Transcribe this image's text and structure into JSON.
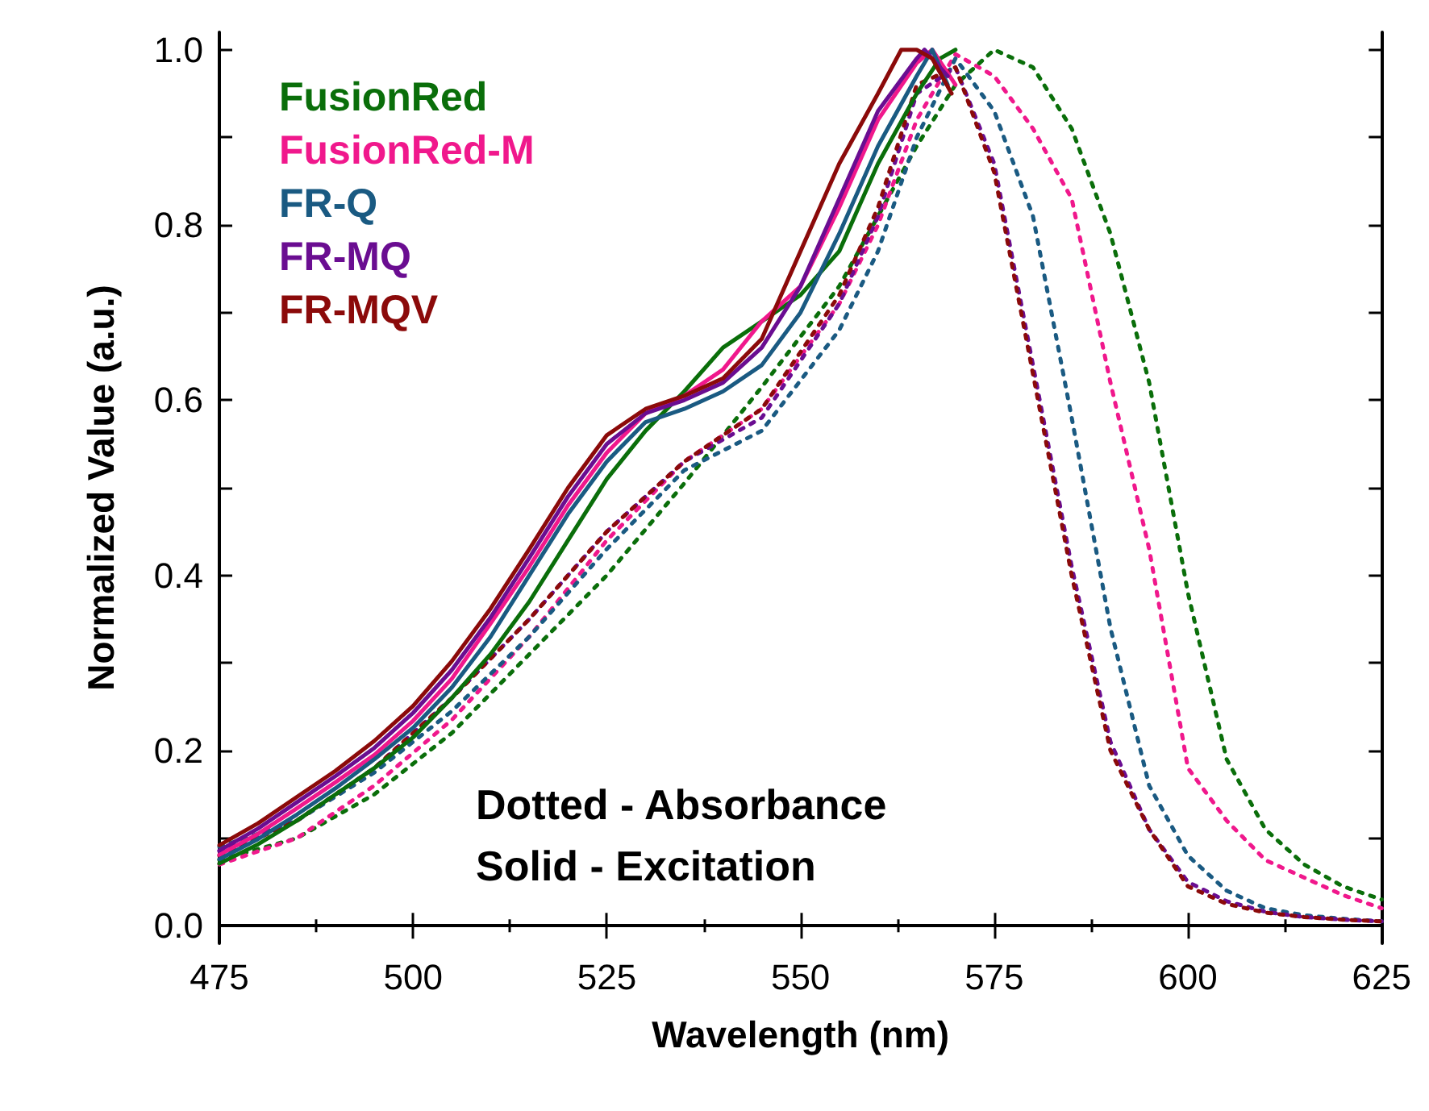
{
  "chart_data": {
    "type": "line",
    "xlabel": "Wavelength (nm)",
    "ylabel": "Normalized Value (a.u.)",
    "xlim": [
      475,
      625
    ],
    "xticks": [
      475,
      500,
      525,
      550,
      575,
      600,
      625
    ],
    "ylim": [
      -0.02,
      1.02
    ],
    "yticks": [
      {
        "value": 0,
        "label": "0.0"
      },
      {
        "value": 0.2,
        "label": "0.2"
      },
      {
        "value": 0.4,
        "label": "0.4"
      },
      {
        "value": 0.6,
        "label": "0.6"
      },
      {
        "value": 0.8,
        "label": "0.8"
      },
      {
        "value": 1,
        "label": "1.0"
      }
    ],
    "grid": false,
    "legend": "top left",
    "marker": "none",
    "annotations": [
      "Dotted - Absorbance",
      "Solid - Excitation"
    ],
    "series": [
      {
        "name": "FusionRed",
        "color": "#0a6e0a",
        "line_style": "solid",
        "x": [
          475,
          480,
          485,
          490,
          495,
          500,
          505,
          510,
          515,
          520,
          525,
          530,
          535,
          540,
          545,
          550,
          555,
          560,
          565,
          568,
          570
        ],
        "values": [
          0.071,
          0.093,
          0.12,
          0.15,
          0.18,
          0.215,
          0.26,
          0.31,
          0.37,
          0.44,
          0.51,
          0.565,
          0.61,
          0.66,
          0.69,
          0.72,
          0.77,
          0.87,
          0.95,
          0.99,
          1.0
        ]
      },
      {
        "name": "FusionRed-M",
        "color": "#f0188c",
        "line_style": "solid",
        "x": [
          475,
          480,
          485,
          490,
          495,
          500,
          505,
          510,
          515,
          520,
          525,
          530,
          535,
          540,
          545,
          550,
          555,
          560,
          565,
          567,
          570
        ],
        "values": [
          0.081,
          0.105,
          0.134,
          0.164,
          0.195,
          0.234,
          0.282,
          0.345,
          0.41,
          0.48,
          0.54,
          0.585,
          0.605,
          0.635,
          0.69,
          0.73,
          0.82,
          0.92,
          0.985,
          1.0,
          0.96
        ]
      },
      {
        "name": "FR-Q",
        "color": "#1a5a82",
        "line_style": "solid",
        "x": [
          475,
          480,
          485,
          490,
          495,
          500,
          505,
          510,
          515,
          520,
          525,
          530,
          535,
          540,
          545,
          550,
          555,
          560,
          565,
          567,
          569
        ],
        "values": [
          0.076,
          0.099,
          0.127,
          0.157,
          0.19,
          0.226,
          0.272,
          0.33,
          0.4,
          0.47,
          0.53,
          0.575,
          0.59,
          0.61,
          0.64,
          0.7,
          0.79,
          0.89,
          0.97,
          1.0,
          0.96
        ]
      },
      {
        "name": "FR-MQ",
        "color": "#6a0d91",
        "line_style": "solid",
        "x": [
          475,
          480,
          485,
          490,
          495,
          500,
          505,
          510,
          515,
          520,
          525,
          530,
          535,
          540,
          545,
          550,
          555,
          560,
          565,
          566,
          569
        ],
        "values": [
          0.086,
          0.111,
          0.141,
          0.171,
          0.203,
          0.243,
          0.292,
          0.352,
          0.42,
          0.49,
          0.55,
          0.585,
          0.6,
          0.62,
          0.66,
          0.73,
          0.83,
          0.93,
          0.99,
          1.0,
          0.97
        ]
      },
      {
        "name": "FR-MQV",
        "color": "#8b0a0a",
        "line_style": "solid",
        "x": [
          475,
          480,
          485,
          490,
          495,
          500,
          505,
          510,
          515,
          520,
          525,
          530,
          535,
          540,
          545,
          550,
          555,
          560,
          563,
          565,
          567,
          569.5
        ],
        "values": [
          0.092,
          0.117,
          0.147,
          0.177,
          0.211,
          0.251,
          0.302,
          0.362,
          0.43,
          0.5,
          0.56,
          0.59,
          0.605,
          0.625,
          0.67,
          0.77,
          0.87,
          0.95,
          1.0,
          1.0,
          0.99,
          0.95
        ]
      },
      {
        "color": "#0a6e0a",
        "line_style": "dotted",
        "x": [
          475,
          485,
          495,
          505,
          515,
          525,
          535,
          545,
          555,
          560,
          565,
          570,
          575,
          580,
          585,
          590,
          595,
          600,
          605,
          610,
          615,
          620,
          625
        ],
        "values": [
          0.075,
          0.1,
          0.15,
          0.22,
          0.31,
          0.4,
          0.505,
          0.615,
          0.73,
          0.81,
          0.89,
          0.96,
          1.0,
          0.98,
          0.91,
          0.79,
          0.62,
          0.38,
          0.19,
          0.11,
          0.07,
          0.045,
          0.03
        ]
      },
      {
        "color": "#f0188c",
        "line_style": "dotted",
        "x": [
          475,
          485,
          495,
          505,
          515,
          525,
          535,
          545,
          555,
          560,
          565,
          570,
          575,
          580,
          585,
          590,
          595,
          600,
          605,
          610,
          615,
          620,
          625
        ],
        "values": [
          0.07,
          0.1,
          0.16,
          0.235,
          0.33,
          0.44,
          0.53,
          0.59,
          0.71,
          0.8,
          0.92,
          0.995,
          0.97,
          0.91,
          0.83,
          0.62,
          0.43,
          0.18,
          0.12,
          0.075,
          0.055,
          0.035,
          0.02
        ]
      },
      {
        "color": "#1a5a82",
        "line_style": "dotted",
        "x": [
          475,
          485,
          495,
          505,
          515,
          525,
          535,
          545,
          555,
          560,
          565,
          570,
          575,
          580,
          585,
          590,
          595,
          600,
          605,
          610,
          615,
          620,
          625
        ],
        "values": [
          0.09,
          0.12,
          0.175,
          0.245,
          0.33,
          0.43,
          0.52,
          0.565,
          0.68,
          0.77,
          0.9,
          0.99,
          0.93,
          0.81,
          0.58,
          0.34,
          0.16,
          0.08,
          0.04,
          0.02,
          0.012,
          0.008,
          0.005
        ]
      },
      {
        "color": "#6a0d91",
        "line_style": "dotted",
        "x": [
          475,
          485,
          495,
          505,
          515,
          525,
          535,
          545,
          555,
          560,
          565,
          570,
          575,
          580,
          585,
          590,
          595,
          600,
          605,
          610,
          615,
          620,
          625
        ],
        "values": [
          0.085,
          0.12,
          0.18,
          0.26,
          0.35,
          0.45,
          0.53,
          0.58,
          0.71,
          0.81,
          0.95,
          0.98,
          0.87,
          0.64,
          0.41,
          0.21,
          0.11,
          0.05,
          0.028,
          0.016,
          0.01,
          0.007,
          0.005
        ]
      },
      {
        "color": "#8b0a0a",
        "line_style": "dotted",
        "x": [
          475,
          485,
          495,
          505,
          515,
          525,
          535,
          545,
          555,
          560,
          565,
          570,
          575,
          580,
          585,
          590,
          595,
          600,
          605,
          610,
          615,
          620,
          625
        ],
        "values": [
          0.08,
          0.12,
          0.18,
          0.26,
          0.35,
          0.45,
          0.53,
          0.59,
          0.72,
          0.82,
          0.96,
          0.98,
          0.86,
          0.63,
          0.4,
          0.2,
          0.11,
          0.045,
          0.025,
          0.015,
          0.01,
          0.007,
          0.005
        ]
      }
    ]
  }
}
